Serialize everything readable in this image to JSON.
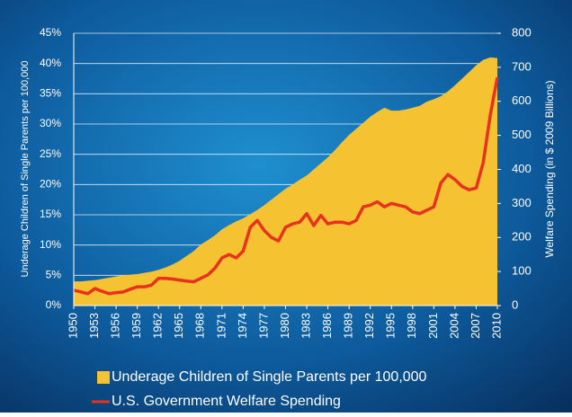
{
  "chart_data": {
    "type": "area",
    "x": [
      1950,
      1951,
      1952,
      1953,
      1954,
      1955,
      1956,
      1957,
      1958,
      1959,
      1960,
      1961,
      1962,
      1963,
      1964,
      1965,
      1966,
      1967,
      1968,
      1969,
      1970,
      1971,
      1972,
      1973,
      1974,
      1975,
      1976,
      1977,
      1978,
      1979,
      1980,
      1981,
      1982,
      1983,
      1984,
      1985,
      1986,
      1987,
      1988,
      1989,
      1990,
      1991,
      1992,
      1993,
      1994,
      1995,
      1996,
      1997,
      1998,
      1999,
      2000,
      2001,
      2002,
      2003,
      2004,
      2005,
      2006,
      2007,
      2008,
      2009,
      2010
    ],
    "xlim": [
      1950,
      2010
    ],
    "xticks": [
      1950,
      1953,
      1956,
      1959,
      1962,
      1965,
      1968,
      1971,
      1974,
      1977,
      1980,
      1983,
      1986,
      1989,
      1992,
      1995,
      1998,
      2001,
      2004,
      2007,
      2010
    ],
    "ylabel": "Underage Children of Single Parents per 100,000",
    "y2label": "Welfare Spending  (in $ 2009 Billions)",
    "ylim": [
      0,
      45
    ],
    "yticks": [
      {
        "value": 0,
        "label": "0%"
      },
      {
        "value": 5,
        "label": "5%"
      },
      {
        "value": 10,
        "label": "10%"
      },
      {
        "value": 15,
        "label": "15%"
      },
      {
        "value": 20,
        "label": "20%"
      },
      {
        "value": 25,
        "label": "25%"
      },
      {
        "value": 30,
        "label": "30%"
      },
      {
        "value": 35,
        "label": "35%"
      },
      {
        "value": 40,
        "label": "40%"
      },
      {
        "value": 45,
        "label": "45%"
      }
    ],
    "y2lim": [
      0,
      800
    ],
    "y2ticks": [
      0,
      100,
      200,
      300,
      400,
      500,
      600,
      700,
      800
    ],
    "grid": true,
    "series": [
      {
        "name": "Underage Children of Single Parents per 100,000",
        "type": "area",
        "color": "#f5c232",
        "values": [
          4.0,
          4.0,
          4.1,
          4.2,
          4.4,
          4.6,
          4.8,
          5.0,
          5.1,
          5.2,
          5.4,
          5.6,
          5.9,
          6.3,
          6.8,
          7.4,
          8.2,
          9.0,
          10.1,
          10.8,
          11.6,
          12.6,
          13.3,
          13.9,
          14.4,
          15.1,
          15.8,
          16.6,
          17.5,
          18.4,
          19.3,
          20.0,
          20.8,
          21.5,
          22.5,
          23.5,
          24.5,
          25.7,
          27.0,
          28.2,
          29.2,
          30.2,
          31.2,
          32.0,
          32.7,
          32.2,
          32.2,
          32.4,
          32.7,
          33.0,
          33.7,
          34.1,
          34.6,
          35.4,
          36.4,
          37.5,
          38.6,
          39.7,
          40.6,
          41.0,
          40.9
        ]
      },
      {
        "name": "U.S. Government Welfare Spending",
        "type": "line",
        "axis": "y2",
        "color": "#e8321e",
        "values": [
          45,
          40,
          35,
          50,
          42,
          35,
          38,
          40,
          48,
          55,
          55,
          60,
          80,
          80,
          78,
          75,
          72,
          70,
          80,
          90,
          110,
          140,
          150,
          140,
          160,
          230,
          250,
          220,
          200,
          190,
          230,
          240,
          245,
          270,
          235,
          265,
          240,
          245,
          245,
          240,
          250,
          290,
          295,
          305,
          290,
          300,
          295,
          290,
          275,
          270,
          280,
          290,
          360,
          385,
          370,
          350,
          340,
          345,
          420,
          560,
          670
        ]
      }
    ]
  }
}
